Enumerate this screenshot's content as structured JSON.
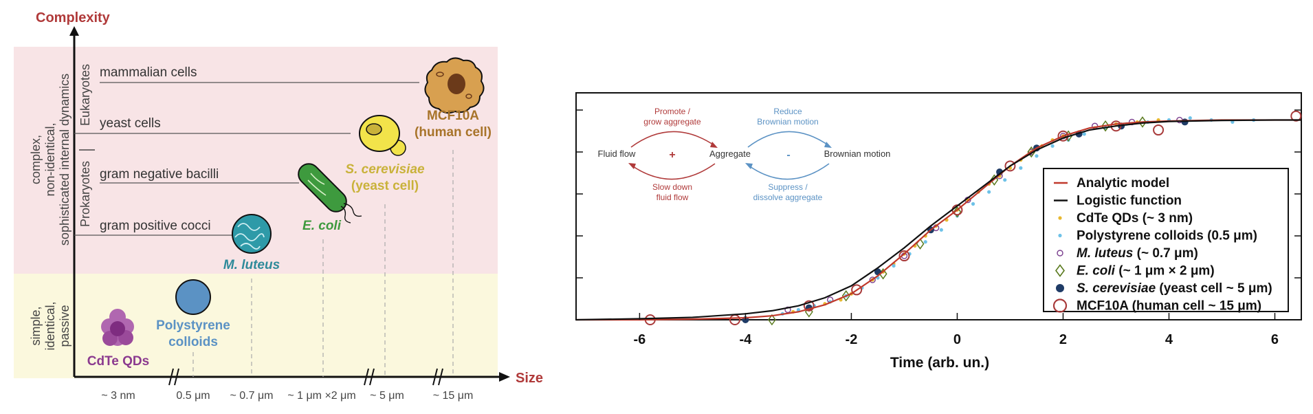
{
  "left_panel": {
    "y_axis_label": "Complexity",
    "x_axis_label": "Size",
    "band_upper_label": [
      "complex,",
      "non-identical,",
      "sophisticated internal dynamics"
    ],
    "band_lower_label": [
      "simple,",
      "identical,",
      "passive"
    ],
    "eukaryotes_label": "Eukaryotes",
    "prokaryotes_label": "Prokaryotes",
    "categories": [
      "mammalian cells",
      "yeast cells",
      "gram negative bacilli",
      "gram positive cocci"
    ],
    "objects": {
      "cdte": "CdTe QDs",
      "polystyrene": [
        "Polystyrene",
        "colloids"
      ],
      "mluteus": "M. luteus",
      "ecoli": "E. coli",
      "scerevisiae": [
        "S. cerevisiae",
        "(yeast cell)"
      ],
      "mcf10a": [
        "MCF10A",
        "(human cell)"
      ]
    },
    "size_ticks": [
      "~ 3 nm",
      "0.5 μm",
      "~ 0.7 μm",
      "~ 1 μm ×2 μm",
      "~ 5 μm",
      "~ 15 μm"
    ],
    "colors": {
      "upper_band": "#f8e4e6",
      "lower_band": "#fbf8dd",
      "axis_label": "#b03a3a",
      "cdte": "#8b3a8f",
      "polystyrene": "#5b92c4",
      "mluteus": "#2e8a9a",
      "ecoli": "#3e9a3e",
      "scerevisiae": "#c9b23a",
      "mcf10a": "#a8742a"
    }
  },
  "chart_data": {
    "type": "scatter",
    "xlabel": "Time (arb. un.)",
    "xlim": [
      -7.2,
      6.5
    ],
    "ylim": [
      0,
      1.05
    ],
    "xticks": [
      -6,
      -4,
      -2,
      0,
      2,
      4,
      6
    ],
    "grid": false,
    "legend_position": "right",
    "series": [
      {
        "name": "Analytic model",
        "kind": "line",
        "color": "#c0392b",
        "x": [
          -7.2,
          -6,
          -5,
          -4,
          -3.5,
          -3,
          -2.5,
          -2,
          -1.5,
          -1,
          -0.5,
          0,
          0.5,
          1,
          1.5,
          2,
          2.5,
          3,
          3.5,
          4,
          5,
          6,
          6.5
        ],
        "y": [
          0.0,
          0.0,
          0.003,
          0.01,
          0.02,
          0.04,
          0.075,
          0.13,
          0.22,
          0.33,
          0.45,
          0.55,
          0.66,
          0.77,
          0.86,
          0.92,
          0.96,
          0.98,
          0.99,
          0.995,
          1.0,
          1.0,
          1.0
        ]
      },
      {
        "name": "Logistic function",
        "kind": "line",
        "color": "#111111",
        "x": [
          -7.2,
          -6,
          -5,
          -4,
          -3.5,
          -3,
          -2.5,
          -2,
          -1.5,
          -1,
          -0.5,
          0,
          0.5,
          1,
          1.5,
          2,
          2.5,
          3,
          3.5,
          4,
          5,
          6,
          6.5
        ],
        "y": [
          0.0,
          0.005,
          0.012,
          0.03,
          0.045,
          0.07,
          0.11,
          0.17,
          0.26,
          0.36,
          0.47,
          0.57,
          0.67,
          0.77,
          0.85,
          0.91,
          0.95,
          0.97,
          0.985,
          0.993,
          0.998,
          1.0,
          1.0
        ]
      },
      {
        "name": "CdTe QDs (~ 3 nm)",
        "kind": "dot",
        "color": "#e8b830",
        "x": [
          -3.1,
          -2.8,
          -2.5,
          -2.2,
          -2,
          -1.8,
          -1.6,
          -1.4,
          -1.2,
          -1,
          -0.8,
          -0.6,
          -0.4,
          -0.2,
          0,
          0.2,
          0.4,
          0.6,
          0.8,
          1,
          1.2,
          1.4,
          1.6,
          1.8,
          2,
          2.3,
          2.6,
          3,
          3.4,
          3.8
        ],
        "y": [
          0.04,
          0.05,
          0.08,
          0.1,
          0.13,
          0.16,
          0.2,
          0.24,
          0.28,
          0.33,
          0.37,
          0.42,
          0.47,
          0.5,
          0.55,
          0.6,
          0.64,
          0.68,
          0.72,
          0.76,
          0.8,
          0.84,
          0.87,
          0.9,
          0.92,
          0.94,
          0.96,
          0.98,
          0.99,
          1.0
        ]
      },
      {
        "name": "Polystyrene colloids (0.5 μm)",
        "kind": "dot",
        "color": "#6ec2e8",
        "x": [
          -3.3,
          -3,
          -2.7,
          -2.4,
          -2.1,
          -1.8,
          -1.5,
          -1.2,
          -0.9,
          -0.6,
          -0.3,
          0,
          0.3,
          0.6,
          0.9,
          1.2,
          1.5,
          1.8,
          2.1,
          2.4,
          2.8,
          3.2,
          3.6,
          4,
          4.4,
          4.8,
          5.2,
          5.6
        ],
        "y": [
          0.03,
          0.05,
          0.07,
          0.09,
          0.12,
          0.16,
          0.21,
          0.27,
          0.33,
          0.39,
          0.45,
          0.52,
          0.58,
          0.64,
          0.7,
          0.76,
          0.82,
          0.87,
          0.9,
          0.93,
          0.96,
          0.98,
          0.99,
          1.0,
          1.01,
          1.0,
          0.99,
          1.0
        ]
      },
      {
        "name": "M. luteus (~ 0.7 μm)",
        "kind": "open-circle",
        "color": "#7a3e8e",
        "x": [
          -3.2,
          -2.4,
          -1.6,
          -1,
          -0.4,
          0.2,
          0.8,
          1.4,
          2.0,
          2.6,
          3.3,
          4.2
        ],
        "y": [
          0.05,
          0.1,
          0.2,
          0.32,
          0.46,
          0.6,
          0.72,
          0.84,
          0.92,
          0.97,
          0.99,
          1.0
        ]
      },
      {
        "name": "E. coli (~ 1 μm × 2 μm)",
        "kind": "diamond",
        "color": "#5a7a1e",
        "x": [
          -3.5,
          -2.8,
          -2.1,
          -1.4,
          -0.7,
          0,
          0.7,
          1.4,
          2.1,
          2.8,
          3.5
        ],
        "y": [
          0.0,
          0.04,
          0.12,
          0.23,
          0.38,
          0.54,
          0.7,
          0.84,
          0.92,
          0.97,
          0.99
        ]
      },
      {
        "name": "S. cerevisiae (yeast cell ~ 5 μm)",
        "kind": "filled-circle",
        "color": "#1f3b66",
        "x": [
          -4,
          -2.8,
          -1.5,
          -0.5,
          0.8,
          1.5,
          2.3,
          3.1,
          4.3
        ],
        "y": [
          0.0,
          0.06,
          0.24,
          0.45,
          0.74,
          0.86,
          0.93,
          0.97,
          0.99
        ]
      },
      {
        "name": "MCF10A (human cell ~ 15 μm)",
        "kind": "large-open-circle",
        "color": "#a83a3a",
        "x": [
          -5.8,
          -4.2,
          -2.8,
          -1.9,
          -1,
          0,
          1,
          2,
          3,
          3.8,
          6.4
        ],
        "y": [
          0.0,
          0.0,
          0.07,
          0.15,
          0.32,
          0.55,
          0.77,
          0.92,
          0.97,
          0.95,
          1.02
        ]
      }
    ]
  },
  "inset": {
    "fluid_flow": "Fluid flow",
    "plus": "+",
    "aggregate": "Aggregate",
    "minus": "-",
    "brownian": "Brownian motion",
    "promote": [
      "Promote /",
      "grow aggregate"
    ],
    "slow": [
      "Slow down",
      "fluid flow"
    ],
    "reduce": [
      "Reduce",
      "Brownian motion"
    ],
    "suppress": [
      "Suppress /",
      "dissolve aggregate"
    ],
    "red": "#b03a3a",
    "blue": "#5b92c4"
  }
}
